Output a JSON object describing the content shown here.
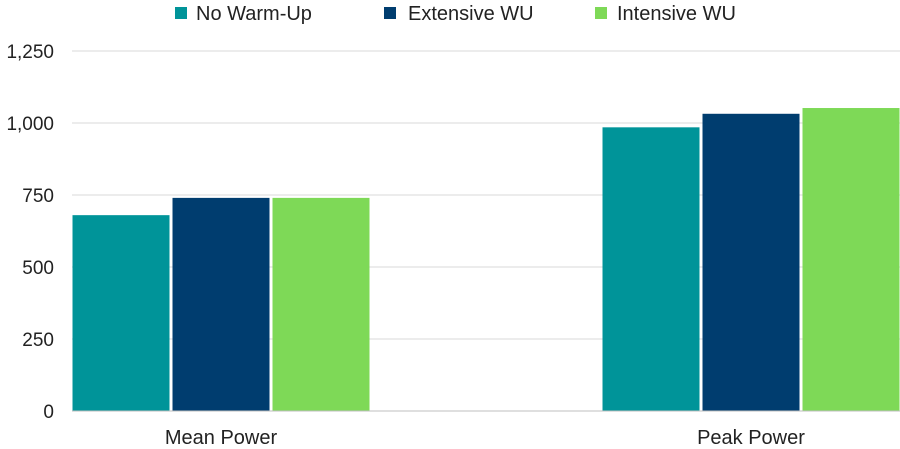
{
  "chart_data": {
    "type": "bar",
    "title": "",
    "xlabel": "",
    "ylabel": "",
    "categories": [
      "Mean Power",
      "Peak Power"
    ],
    "series": [
      {
        "name": "No Warm-Up",
        "color": "#009499",
        "values": [
          680,
          985
        ]
      },
      {
        "name": "Extensive WU",
        "color": "#003d6f",
        "values": [
          740,
          1032
        ]
      },
      {
        "name": "Intensive WU",
        "color": "#7ed957",
        "values": [
          740,
          1052
        ]
      }
    ],
    "ylim": [
      0,
      1250
    ],
    "yticks": [
      0,
      250,
      500,
      750,
      1000,
      1250
    ],
    "ytick_labels": [
      "0",
      "250",
      "500",
      "750",
      "1,000",
      "1,250"
    ],
    "grid": true,
    "legend_position": "top-center"
  }
}
